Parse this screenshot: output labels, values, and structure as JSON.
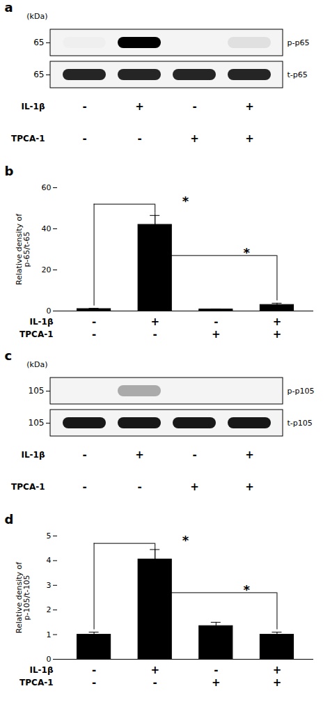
{
  "chart_data": [
    {
      "type": "blot",
      "title": "a",
      "unit_label": "(kDa)",
      "row_label": "65",
      "rows": [
        "p-p65",
        "t-p65"
      ],
      "cells": [
        [
          0.02,
          1.0,
          0.0,
          0.08
        ],
        [
          0.85,
          0.85,
          0.85,
          0.85
        ]
      ],
      "conditions": [
        {
          "name": "IL-1β",
          "values": [
            "-",
            "+",
            "-",
            "+"
          ]
        },
        {
          "name": "TPCA-1",
          "values": [
            "-",
            "-",
            "+",
            "+"
          ]
        }
      ]
    },
    {
      "type": "bar",
      "title": "b",
      "ylabel": "Relative density of\np-65/t-65",
      "categories": [
        null,
        null,
        null,
        null
      ],
      "values": [
        1.0,
        42.0,
        0.8,
        3.0
      ],
      "errors": [
        0.3,
        4.5,
        0.2,
        0.8
      ],
      "color": "black",
      "ylim": [
        0,
        60
      ],
      "yticks": [
        0,
        20,
        40,
        60
      ],
      "conditions": [
        {
          "name": "IL-1β",
          "values": [
            "-",
            "+",
            "-",
            "+"
          ]
        },
        {
          "name": "TPCA-1",
          "values": [
            "-",
            "-",
            "+",
            "+"
          ]
        }
      ],
      "annotations": [
        {
          "from": 0,
          "to": 1,
          "y": 52,
          "x": 1.5,
          "text": "*"
        },
        {
          "from": 1,
          "to": 3,
          "y": 27,
          "x": 2.5,
          "text": "*"
        }
      ]
    },
    {
      "type": "blot",
      "title": "c",
      "unit_label": "(kDa)",
      "row_label": "105",
      "rows": [
        "p-p105",
        "t-p105"
      ],
      "cells": [
        [
          0.0,
          0.3,
          0.0,
          0.0
        ],
        [
          0.9,
          0.9,
          0.9,
          0.9
        ]
      ],
      "conditions": [
        {
          "name": "IL-1β",
          "values": [
            "-",
            "+",
            "-",
            "+"
          ]
        },
        {
          "name": "TPCA-1",
          "values": [
            "-",
            "-",
            "+",
            "+"
          ]
        }
      ]
    },
    {
      "type": "bar",
      "title": "d",
      "ylabel": "Relative density of\np-105/t-105",
      "categories": [
        null,
        null,
        null,
        null
      ],
      "values": [
        1.0,
        4.05,
        1.35,
        1.0
      ],
      "errors": [
        0.1,
        0.4,
        0.15,
        0.1
      ],
      "color": "black",
      "ylim": [
        0,
        5
      ],
      "yticks": [
        0,
        1,
        2,
        3,
        4,
        5
      ],
      "conditions": [
        {
          "name": "IL-1β",
          "values": [
            "-",
            "+",
            "-",
            "+"
          ]
        },
        {
          "name": "TPCA-1",
          "values": [
            "-",
            "-",
            "+",
            "+"
          ]
        }
      ],
      "annotations": [
        {
          "from": 0,
          "to": 1,
          "y": 4.7,
          "x": 1.5,
          "text": "*"
        },
        {
          "from": 1,
          "to": 3,
          "y": 2.7,
          "x": 2.5,
          "text": "*"
        }
      ]
    }
  ]
}
